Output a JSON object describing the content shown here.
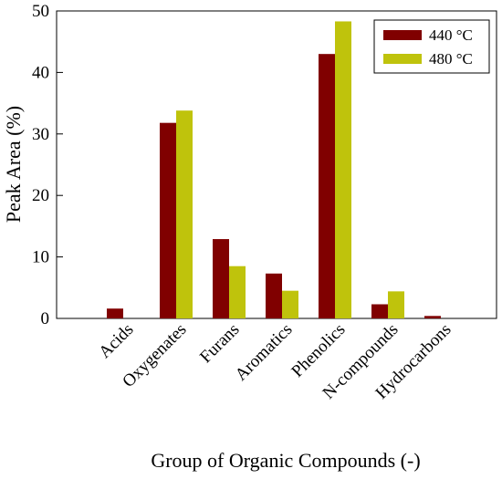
{
  "chart_data": {
    "type": "bar",
    "title": "",
    "xlabel": "Group of Organic Compounds (-)",
    "ylabel": "Peak Area (%)",
    "ylim": [
      0,
      50
    ],
    "yticks": [
      0,
      10,
      20,
      30,
      40,
      50
    ],
    "categories": [
      "Acids",
      "Oxygenates",
      "Furans",
      "Aromatics",
      "Phenolics",
      "N-compounds",
      "Hydrocarbons"
    ],
    "series": [
      {
        "name": "440 °C",
        "color": "#800000",
        "values": [
          1.6,
          31.8,
          12.9,
          7.3,
          43.0,
          2.3,
          0.4
        ]
      },
      {
        "name": "480 °C",
        "color": "#bfc30c",
        "values": [
          0,
          33.8,
          8.5,
          4.5,
          48.3,
          4.4,
          0
        ]
      }
    ],
    "legend_position": "top-right",
    "grid": false
  }
}
